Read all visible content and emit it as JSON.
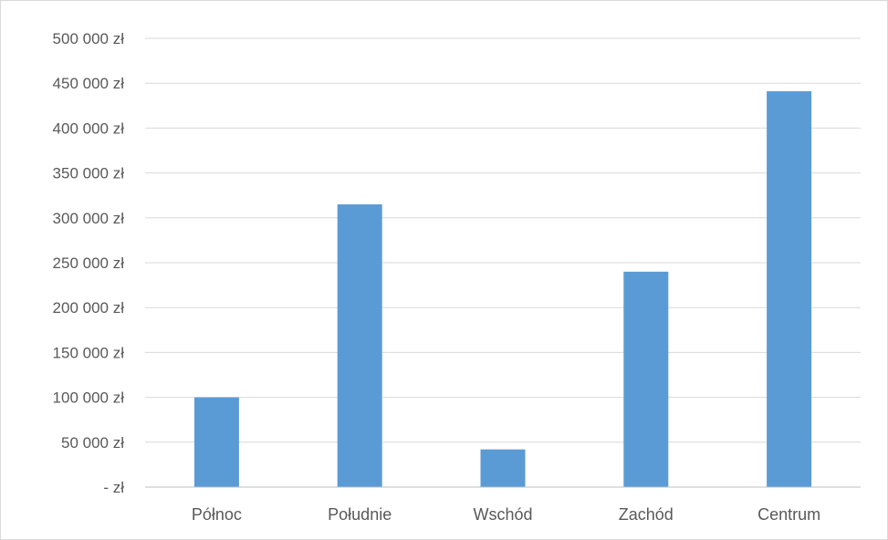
{
  "chart_data": {
    "type": "bar",
    "categories": [
      "Północ",
      "Południe",
      "Wschód",
      "Zachód",
      "Centrum"
    ],
    "values": [
      100000,
      315000,
      42000,
      240000,
      441000
    ],
    "ylim": [
      0,
      500000
    ],
    "y_ticks": [
      {
        "value": 0,
        "label": "-  zł"
      },
      {
        "value": 50000,
        "label": "50 000 zł"
      },
      {
        "value": 100000,
        "label": "100 000 zł"
      },
      {
        "value": 150000,
        "label": "150 000 zł"
      },
      {
        "value": 200000,
        "label": "200 000 zł"
      },
      {
        "value": 250000,
        "label": "250 000 zł"
      },
      {
        "value": 300000,
        "label": "300 000 zł"
      },
      {
        "value": 350000,
        "label": "350 000 zł"
      },
      {
        "value": 400000,
        "label": "400 000 zł"
      },
      {
        "value": 450000,
        "label": "450 000 zł"
      },
      {
        "value": 500000,
        "label": "500 000 zł"
      }
    ],
    "grid": true,
    "legend": "none",
    "colors": {
      "bar": "#5b9bd5",
      "grid": "#d9d9d9",
      "axis": "#bfbfbf",
      "text": "#595959"
    }
  }
}
